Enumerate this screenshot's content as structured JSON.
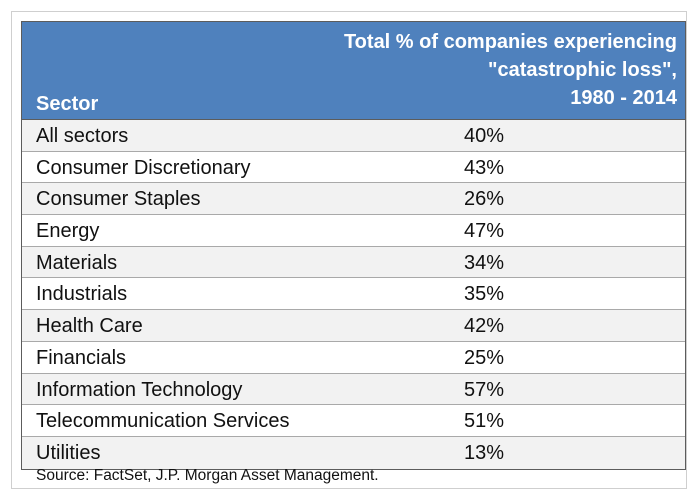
{
  "chart_data": {
    "type": "table",
    "title": "",
    "columns": [
      "Sector",
      "Total % of companies experiencing \"catastrophic loss\", 1980 - 2014"
    ],
    "header": {
      "sector_label": "Sector",
      "value_label_lines": [
        "Total % of companies experiencing",
        "\"catastrophic loss\",",
        "1980 - 2014"
      ]
    },
    "rows": [
      {
        "sector": "All sectors",
        "value": "40%"
      },
      {
        "sector": "Consumer Discretionary",
        "value": "43%"
      },
      {
        "sector": "Consumer Staples",
        "value": "26%"
      },
      {
        "sector": "Energy",
        "value": "47%"
      },
      {
        "sector": "Materials",
        "value": "34%"
      },
      {
        "sector": "Industrials",
        "value": "35%"
      },
      {
        "sector": "Health Care",
        "value": "42%"
      },
      {
        "sector": "Financials",
        "value": "25%"
      },
      {
        "sector": "Information Technology",
        "value": "57%"
      },
      {
        "sector": "Telecommunication Services",
        "value": "51%"
      },
      {
        "sector": "Utilities",
        "value": "13%"
      }
    ],
    "source": "Source: FactSet, J.P. Morgan Asset Management."
  },
  "colors": {
    "header_bg": "#4f81bd",
    "header_text": "#ffffff",
    "row_alt": "#f2f2f2",
    "border": "#5c5c5c"
  }
}
